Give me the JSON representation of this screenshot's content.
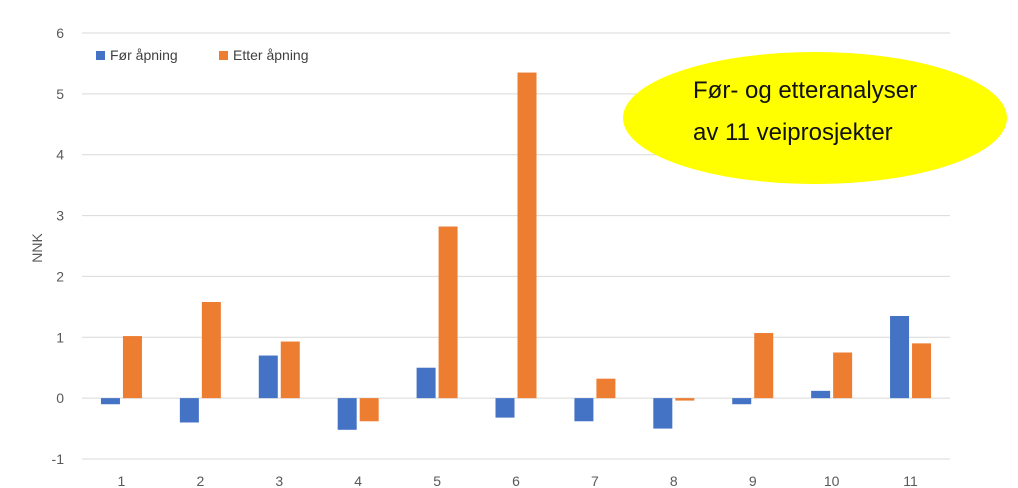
{
  "chart_data": {
    "type": "bar",
    "title": "",
    "xlabel": "",
    "ylabel": "NNK",
    "categories": [
      "1",
      "2",
      "3",
      "4",
      "5",
      "6",
      "7",
      "8",
      "9",
      "10",
      "11"
    ],
    "series": [
      {
        "name": "Før åpning",
        "color": "#4472c4",
        "values": [
          -0.1,
          -0.4,
          0.7,
          -0.52,
          0.5,
          -0.32,
          -0.38,
          -0.5,
          -0.1,
          0.12,
          1.35
        ]
      },
      {
        "name": "Etter åpning",
        "color": "#ed7d31",
        "values": [
          1.02,
          1.58,
          0.93,
          -0.38,
          2.82,
          5.35,
          0.32,
          -0.04,
          1.07,
          0.75,
          0.9
        ]
      }
    ],
    "ylim": [
      -1,
      6
    ],
    "yticks": [
      "-1",
      "0",
      "1",
      "2",
      "3",
      "4",
      "5",
      "6"
    ],
    "grid": true,
    "legend_position": "top-left"
  },
  "callout": {
    "line1": "Før- og etteranalyser",
    "line2": "av 11 veiprosjekter",
    "color": "#ffff00"
  }
}
